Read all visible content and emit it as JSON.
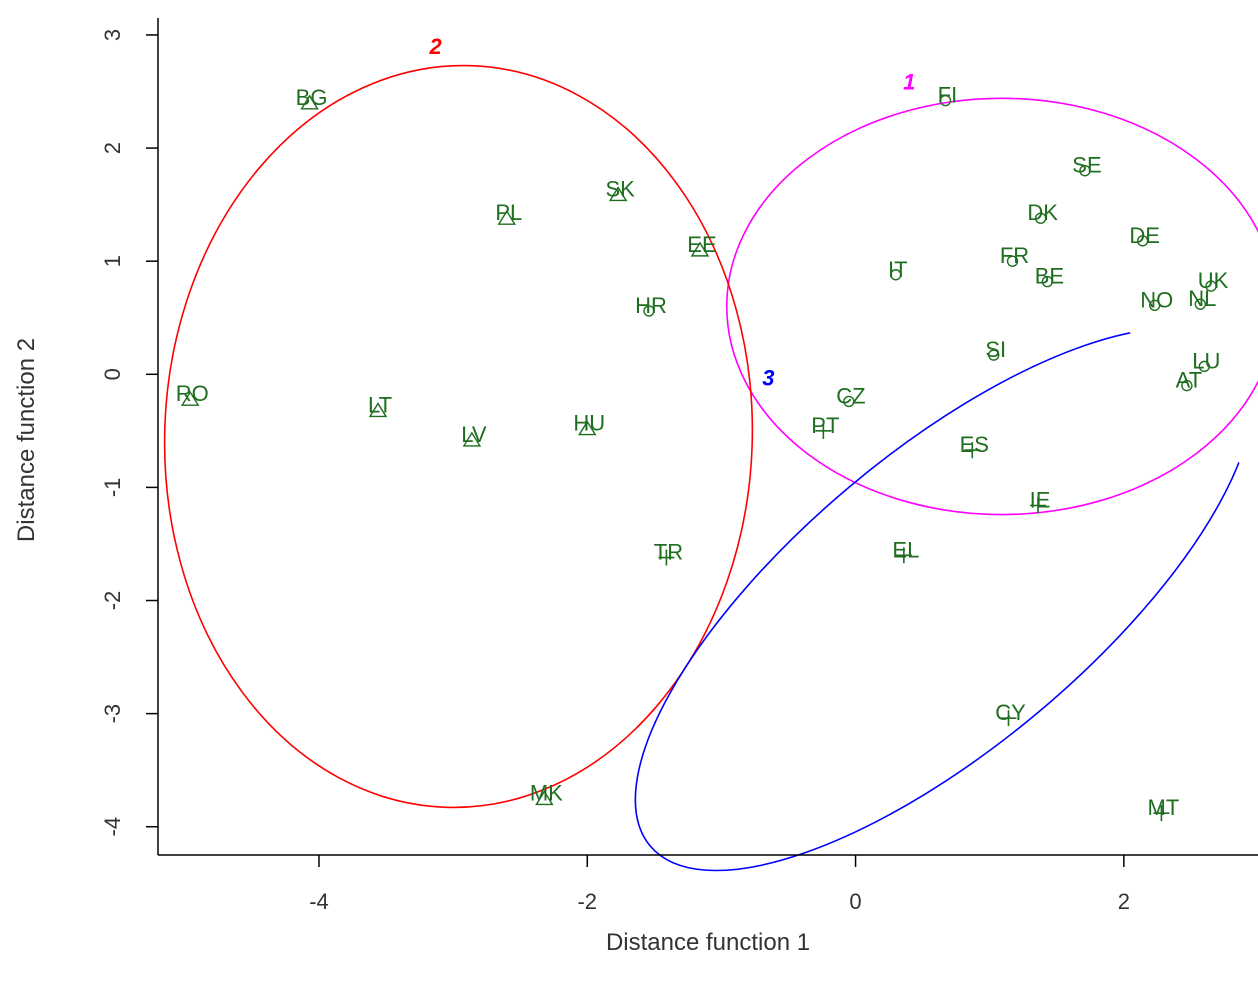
{
  "chart_data": {
    "type": "scatter",
    "title": "",
    "xlabel": "Distance function 1",
    "ylabel": "Distance function 2",
    "xlim": [
      -5.2,
      3.0
    ],
    "ylim": [
      -4.25,
      3.15
    ],
    "xticks": [
      -4,
      -2,
      0,
      2
    ],
    "xtick_labels": [
      "-4",
      "-2",
      "0",
      "2"
    ],
    "yticks": [
      -4,
      -3,
      -2,
      -1,
      0,
      1,
      2,
      3
    ],
    "ytick_labels": [
      "-4",
      "-3",
      "-2",
      "-1",
      "0",
      "1",
      "2",
      "3"
    ],
    "grid": false,
    "legend": "none",
    "point_color": "#1f6e1f",
    "groups": [
      {
        "label": "1",
        "marker": "circle",
        "color": "#ff00ff",
        "ellipse": {
          "cx": 1.09,
          "cy": 0.6,
          "rx": 2.05,
          "ry": 1.84,
          "angle_deg": 0
        },
        "label_pos": [
          0.4,
          2.52
        ],
        "points": [
          {
            "name": "FI",
            "x": 0.67,
            "y": 2.42
          },
          {
            "name": "SE",
            "x": 1.71,
            "y": 1.8
          },
          {
            "name": "DK",
            "x": 1.38,
            "y": 1.38
          },
          {
            "name": "DE",
            "x": 2.14,
            "y": 1.18
          },
          {
            "name": "IT",
            "x": 0.3,
            "y": 0.88
          },
          {
            "name": "FR",
            "x": 1.17,
            "y": 1.0
          },
          {
            "name": "BE",
            "x": 1.43,
            "y": 0.82
          },
          {
            "name": "UK",
            "x": 2.65,
            "y": 0.78
          },
          {
            "name": "NO",
            "x": 2.23,
            "y": 0.61
          },
          {
            "name": "NL",
            "x": 2.57,
            "y": 0.62
          },
          {
            "name": "SI",
            "x": 1.03,
            "y": 0.17
          },
          {
            "name": "LU",
            "x": 2.6,
            "y": 0.07
          },
          {
            "name": "AT",
            "x": 2.47,
            "y": -0.1
          },
          {
            "name": "HR",
            "x": -1.54,
            "y": 0.56
          },
          {
            "name": "CZ",
            "x": -0.05,
            "y": -0.24
          }
        ]
      },
      {
        "label": "2",
        "marker": "triangle",
        "color": "#ff0000",
        "ellipse": {
          "cx": -2.96,
          "cy": -0.55,
          "rx": 2.19,
          "ry": 3.28,
          "angle_deg": 2
        },
        "label_pos": [
          -3.13,
          2.83
        ],
        "points": [
          {
            "name": "BG",
            "x": -4.07,
            "y": 2.4
          },
          {
            "name": "SK",
            "x": -1.77,
            "y": 1.59
          },
          {
            "name": "PL",
            "x": -2.6,
            "y": 1.38
          },
          {
            "name": "EE",
            "x": -1.16,
            "y": 1.1
          },
          {
            "name": "RO",
            "x": -4.96,
            "y": -0.22
          },
          {
            "name": "LT",
            "x": -3.56,
            "y": -0.32
          },
          {
            "name": "LV",
            "x": -2.86,
            "y": -0.58
          },
          {
            "name": "HU",
            "x": -2.0,
            "y": -0.48
          },
          {
            "name": "MK",
            "x": -2.32,
            "y": -3.75
          }
        ]
      },
      {
        "label": "3",
        "marker": "plus",
        "color": "#0000ff",
        "ellipse": {
          "cx": 0.66,
          "cy": -1.99,
          "rx": 2.86,
          "ry": 1.3,
          "angle_deg": -40
        },
        "label_pos": [
          -0.65,
          -0.1
        ],
        "points": [
          {
            "name": "PT",
            "x": -0.24,
            "y": -0.5
          },
          {
            "name": "ES",
            "x": 0.87,
            "y": -0.67
          },
          {
            "name": "IE",
            "x": 1.36,
            "y": -1.16
          },
          {
            "name": "EL",
            "x": 0.36,
            "y": -1.6
          },
          {
            "name": "TR",
            "x": -1.41,
            "y": -1.62
          },
          {
            "name": "CY",
            "x": 1.14,
            "y": -3.04
          },
          {
            "name": "MT",
            "x": 2.28,
            "y": -3.88
          }
        ]
      }
    ]
  }
}
